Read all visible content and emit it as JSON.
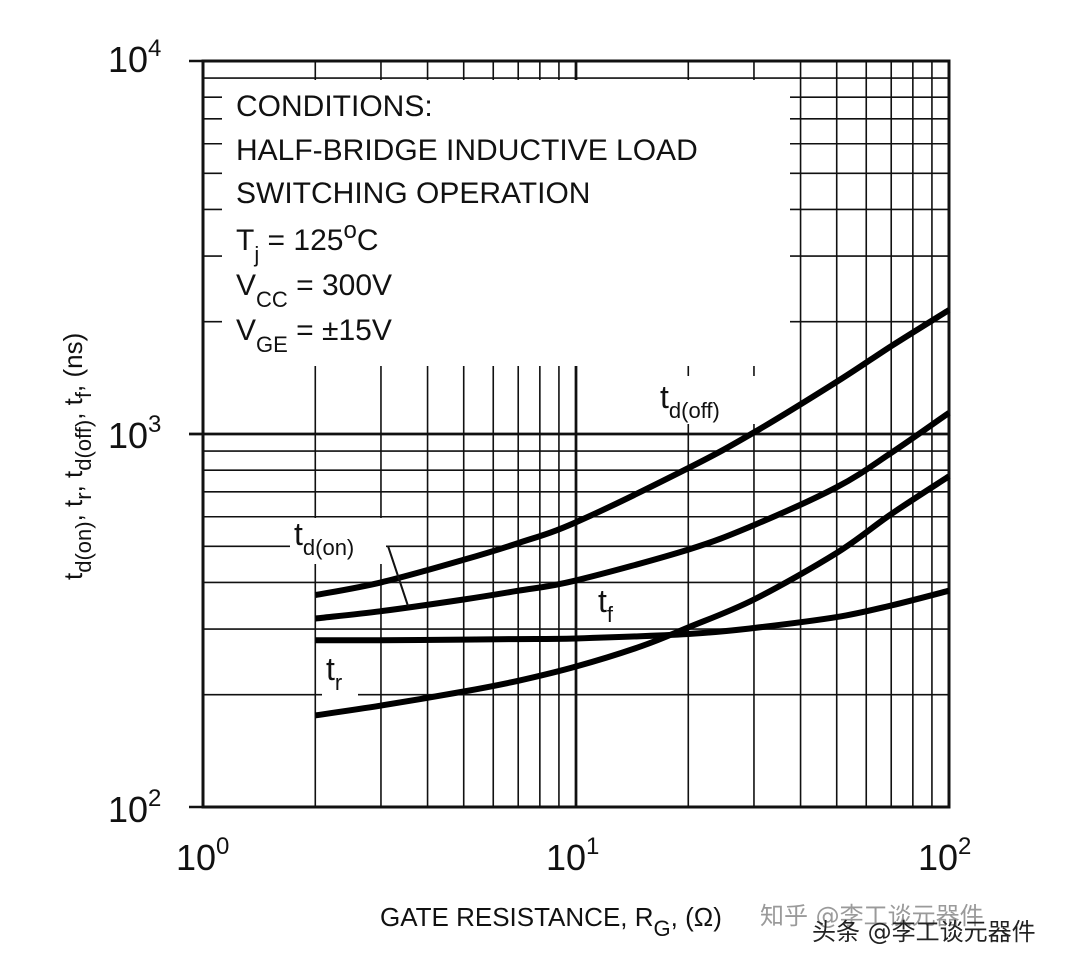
{
  "chart_data": {
    "type": "line",
    "xscale": "log",
    "yscale": "log",
    "xlim": [
      1,
      100
    ],
    "ylim": [
      100,
      10000
    ],
    "grid": true,
    "xlabel": {
      "main": "GATE RESISTANCE, R",
      "sub": "G",
      "tail": ", (Ω)"
    },
    "ylabel": {
      "parts": [
        {
          "t": "t",
          "sub": "d(on)"
        },
        {
          "t": ", t",
          "sub": "r"
        },
        {
          "t": ", t",
          "sub": "d(off)"
        },
        {
          "t": ", t",
          "sub": "f"
        },
        {
          "t": ", (ns)",
          "sub": ""
        }
      ]
    },
    "x_ticks": [
      {
        "value": 1,
        "base": "10",
        "exp": "0"
      },
      {
        "value": 10,
        "base": "10",
        "exp": "1"
      },
      {
        "value": 100,
        "base": "10",
        "exp": "2"
      }
    ],
    "y_ticks": [
      {
        "value": 100,
        "base": "10",
        "exp": "2"
      },
      {
        "value": 1000,
        "base": "10",
        "exp": "3"
      },
      {
        "value": 10000,
        "base": "10",
        "exp": "4"
      }
    ],
    "conditions": [
      {
        "text": "CONDITIONS:"
      },
      {
        "text": "HALF-BRIDGE INDUCTIVE LOAD"
      },
      {
        "text": "SWITCHING OPERATION"
      },
      {
        "pre": "T",
        "sub": "j",
        "post": " = 125",
        "sup": "o",
        "tail": "C"
      },
      {
        "pre": "V",
        "sub": "CC",
        "post": " = 300V",
        "sup": "",
        "tail": ""
      },
      {
        "pre": "V",
        "sub": "GE",
        "post": " = ±15V",
        "sup": "",
        "tail": ""
      }
    ],
    "series": [
      {
        "id": "td_off",
        "label": "t",
        "label_sub": "d(off)",
        "x": [
          2,
          3,
          5,
          7,
          10,
          20,
          30,
          50,
          70,
          100
        ],
        "y": [
          370,
          400,
          460,
          510,
          580,
          810,
          1010,
          1380,
          1720,
          2150
        ]
      },
      {
        "id": "td_on",
        "label": "t",
        "label_sub": "d(on)",
        "x": [
          2,
          3,
          5,
          7,
          10,
          20,
          30,
          50,
          70,
          100
        ],
        "y": [
          320,
          335,
          360,
          380,
          405,
          490,
          570,
          720,
          890,
          1140
        ]
      },
      {
        "id": "tf",
        "label": "t",
        "label_sub": "f",
        "x": [
          2,
          3,
          5,
          7,
          10,
          20,
          30,
          50,
          70,
          100
        ],
        "y": [
          280,
          280,
          281,
          282,
          283,
          291,
          302,
          323,
          347,
          380
        ]
      },
      {
        "id": "tr",
        "label": "t",
        "label_sub": "r",
        "x": [
          2,
          3,
          5,
          7,
          10,
          15,
          20,
          30,
          50,
          70,
          100
        ],
        "y": [
          176,
          187,
          204,
          218,
          238,
          270,
          303,
          360,
          480,
          610,
          770
        ]
      }
    ]
  },
  "watermark": {
    "line1": "知乎 @李工谈元器件",
    "line2": "头条 @李工谈元器件"
  }
}
